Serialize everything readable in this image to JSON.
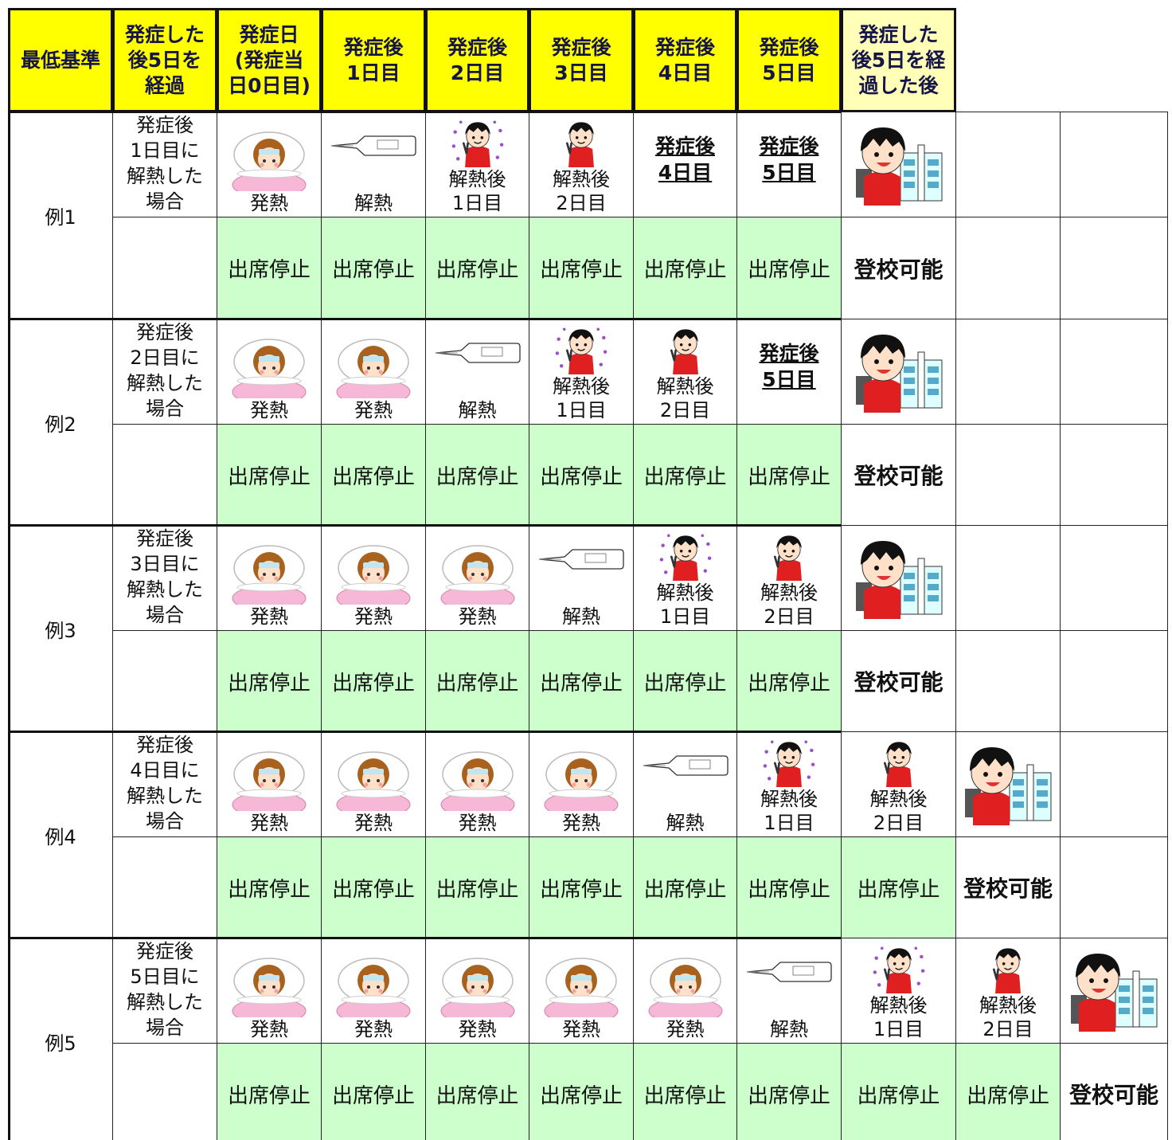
{
  "header": {
    "cells": [
      "最低基準",
      "発症した\n後5日を\n経過",
      "発症日\n(発症当\n日0日目)",
      "発症後\n1日目",
      "発症後\n2日目",
      "発症後\n3日目",
      "発症後\n4日目",
      "発症後\n5日目",
      "発症した\n後5日を経\n過した後"
    ]
  },
  "examples": [
    {
      "label": "例1",
      "condition": "発症後\n1日目に\n解熱した\n場合",
      "days": [
        "発熱",
        "解熱",
        "解熱後\n1日目",
        "解熱後\n2日目",
        "発症後\n4日目",
        "発症後\n5日目"
      ],
      "statuses": [
        "出席停止",
        "出席停止",
        "出席停止",
        "出席停止",
        "出席停止",
        "出席停止",
        "登校可能"
      ]
    },
    {
      "label": "例2",
      "condition": "発症後\n2日目に\n解熱した\n場合",
      "days": [
        "発熱",
        "発熱",
        "解熱",
        "解熱後\n1日目",
        "解熱後\n2日目",
        "発症後\n5日目"
      ],
      "statuses": [
        "出席停止",
        "出席停止",
        "出席停止",
        "出席停止",
        "出席停止",
        "出席停止",
        "登校可能"
      ]
    },
    {
      "label": "例3",
      "condition": "発症後\n3日目に\n解熱した\n場合",
      "days": [
        "発熱",
        "発熱",
        "発熱",
        "解熱",
        "解熱後\n1日目",
        "解熱後\n2日目"
      ],
      "statuses": [
        "出席停止",
        "出席停止",
        "出席停止",
        "出席停止",
        "出席停止",
        "出席停止",
        "登校可能"
      ]
    },
    {
      "label": "例4",
      "condition": "発症後\n4日目に\n解熱した\n場合",
      "days": [
        "発熱",
        "発熱",
        "発熱",
        "発熱",
        "解熱",
        "解熱後\n1日目",
        "解熱後\n2日目"
      ],
      "statuses": [
        "出席停止",
        "出席停止",
        "出席停止",
        "出席停止",
        "出席停止",
        "出席停止",
        "出席停止",
        "登校可能"
      ]
    },
    {
      "label": "例5",
      "condition": "発症後\n5日目に\n解熱した\n場合",
      "days": [
        "発熱",
        "発熱",
        "発熱",
        "発熱",
        "発熱",
        "解熱",
        "解熱後\n1日目",
        "解熱後\n2日目"
      ],
      "statuses": [
        "出席停止",
        "出席停止",
        "出席停止",
        "出席停止",
        "出席停止",
        "出席停止",
        "出席停止",
        "出席停止",
        "登校可能"
      ]
    }
  ]
}
